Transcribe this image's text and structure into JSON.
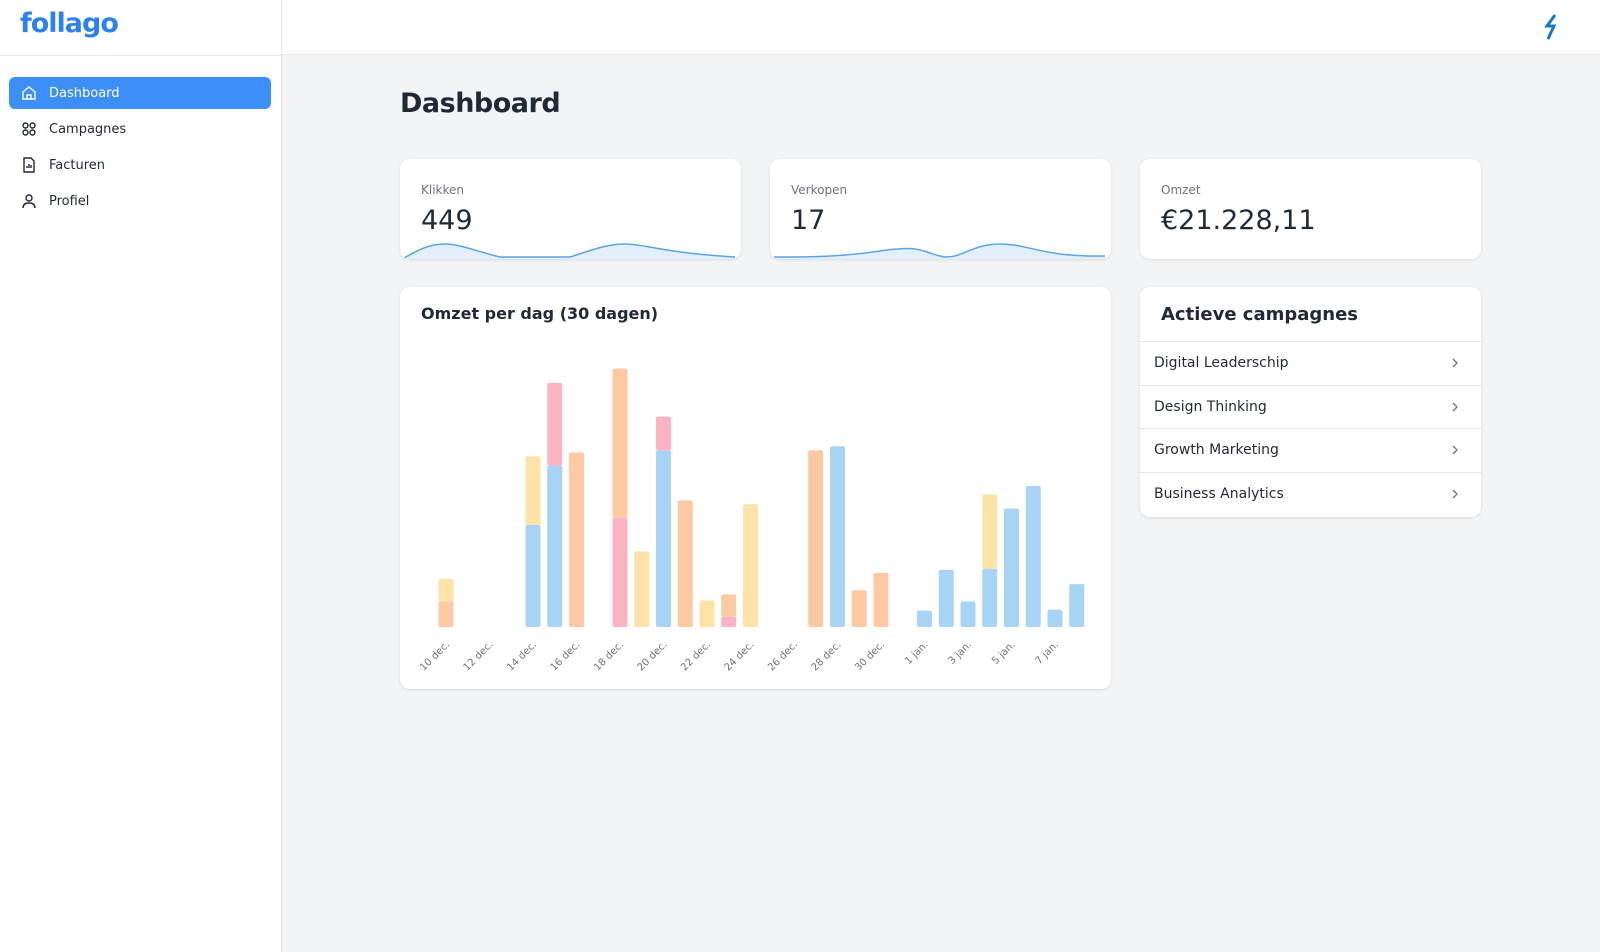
{
  "app": {
    "logo": "follago"
  },
  "nav": [
    {
      "label": "Dashboard",
      "active": true
    },
    {
      "label": "Campagnes",
      "active": false
    },
    {
      "label": "Facturen",
      "active": false
    },
    {
      "label": "Profiel",
      "active": false
    }
  ],
  "page": {
    "title": "Dashboard"
  },
  "stats": [
    {
      "label": "Klikken",
      "value": "449"
    },
    {
      "label": "Verkopen",
      "value": "17"
    },
    {
      "label": "Omzet",
      "value": "€21.228,11"
    }
  ],
  "chart_data": {
    "type": "bar",
    "stacked": true,
    "title": "Omzet per dag (30 dagen)",
    "categories": [
      "10 dec.",
      null,
      "12 dec.",
      null,
      "14 dec.",
      null,
      "16 dec.",
      null,
      "18 dec.",
      null,
      "20 dec.",
      null,
      "22 dec.",
      null,
      "24 dec.",
      null,
      "26 dec.",
      null,
      "28 dec.",
      null,
      "30 dec.",
      null,
      "1 jan.",
      null,
      "3 jan.",
      null,
      "5 jan.",
      null,
      "7 jan.",
      null
    ],
    "series": [
      {
        "color": "#a7d3f5",
        "values": [
          0,
          0,
          0,
          0,
          100,
          158,
          0,
          0,
          0,
          0,
          173,
          0,
          0,
          0,
          0,
          0,
          0,
          0,
          177,
          0,
          0,
          0,
          16,
          56,
          25,
          57,
          116,
          138,
          17,
          42
        ]
      },
      {
        "color": "#fbb3c5",
        "values": [
          0,
          0,
          0,
          0,
          0,
          81,
          0,
          0,
          107,
          0,
          33,
          0,
          0,
          10,
          0,
          0,
          0,
          0,
          0,
          0,
          0,
          0,
          0,
          0,
          0,
          0,
          0,
          0,
          0,
          0
        ]
      },
      {
        "color": "#fcc9a3",
        "values": [
          25,
          0,
          0,
          0,
          0,
          0,
          171,
          0,
          146,
          0,
          0,
          124,
          0,
          22,
          0,
          0,
          0,
          173,
          0,
          36,
          53,
          0,
          0,
          0,
          0,
          0,
          0,
          0,
          0,
          0
        ]
      },
      {
        "color": "#fde3a7",
        "values": [
          22,
          0,
          0,
          0,
          67,
          0,
          0,
          0,
          0,
          74,
          0,
          0,
          26,
          0,
          120,
          0,
          0,
          0,
          0,
          0,
          0,
          0,
          0,
          0,
          0,
          73,
          0,
          0,
          0,
          0
        ]
      }
    ],
    "ylim": [
      0,
      280
    ]
  },
  "campaigns": {
    "title": "Actieve campagnes",
    "items": [
      "Digital Leaderschip",
      "Design Thinking",
      "Growth Marketing",
      "Business Analytics"
    ]
  }
}
